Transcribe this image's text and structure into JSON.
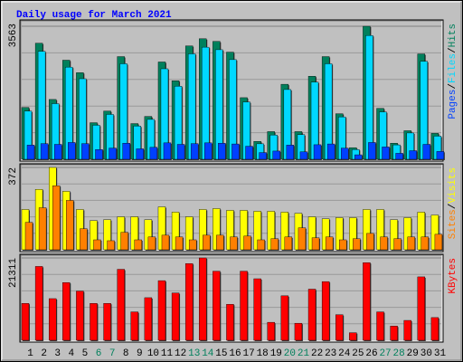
{
  "chart_data": [
    {
      "type": "bar",
      "title": "Daily usage for March 2021",
      "ylim": [
        0,
        3563
      ],
      "yticks": [
        3563
      ],
      "legend_separator": "/",
      "series": [
        {
          "name": "Hits",
          "color": "#00805c",
          "values": [
            1387,
            3108,
            1602,
            2654,
            2319,
            980,
            1291,
            2750,
            956,
            1148,
            2606,
            2104,
            3037,
            3228,
            3156,
            2870,
            1650,
            478,
            741,
            2009,
            741,
            2224,
            2750,
            1220,
            311,
            3563,
            1363,
            430,
            765,
            2822,
            694
          ]
        },
        {
          "name": "Files",
          "color": "#00d8ff",
          "values": [
            1290,
            2890,
            1490,
            2468,
            2157,
            911,
            1201,
            2558,
            889,
            1068,
            2424,
            1957,
            2824,
            3002,
            2935,
            2669,
            1535,
            415,
            650,
            1868,
            660,
            2068,
            2558,
            1135,
            260,
            3314,
            1268,
            385,
            705,
            2624,
            620
          ]
        },
        {
          "name": "Pages",
          "color": "#0040ff",
          "values": [
            380,
            420,
            400,
            450,
            420,
            260,
            300,
            430,
            280,
            320,
            440,
            400,
            420,
            440,
            430,
            410,
            350,
            180,
            220,
            380,
            200,
            390,
            410,
            300,
            120,
            450,
            330,
            160,
            230,
            400,
            210
          ]
        }
      ]
    },
    {
      "type": "bar",
      "ylim": [
        0,
        372
      ],
      "yticks": [
        372
      ],
      "legend_separator": "/",
      "series": [
        {
          "name": "Visits",
          "color": "#ffff00",
          "values": [
            182,
            273,
            372,
            264,
            182,
            132,
            136,
            149,
            149,
            136,
            194,
            170,
            149,
            182,
            186,
            178,
            178,
            174,
            174,
            170,
            165,
            149,
            140,
            145,
            145,
            182,
            182,
            136,
            145,
            170,
            157
          ]
        },
        {
          "name": "Sites",
          "color": "#ff8000",
          "values": [
            124,
            190,
            289,
            223,
            95,
            45,
            41,
            79,
            45,
            58,
            66,
            58,
            45,
            66,
            66,
            58,
            62,
            45,
            50,
            58,
            99,
            54,
            58,
            45,
            50,
            74,
            58,
            50,
            58,
            58,
            70
          ]
        }
      ]
    },
    {
      "type": "bar",
      "ylim": [
        0,
        21311
      ],
      "yticks": [
        21311
      ],
      "categories": [
        "1",
        "2",
        "3",
        "4",
        "5",
        "6",
        "7",
        "8",
        "9",
        "10",
        "11",
        "12",
        "13",
        "14",
        "15",
        "16",
        "17",
        "18",
        "19",
        "20",
        "21",
        "22",
        "23",
        "24",
        "25",
        "26",
        "27",
        "28",
        "29",
        "30",
        "31"
      ],
      "category_colors": [
        "#000000",
        "#000000",
        "#000000",
        "#000000",
        "#000000",
        "#00805c",
        "#00805c",
        "#000000",
        "#000000",
        "#000000",
        "#000000",
        "#000000",
        "#00805c",
        "#00805c",
        "#000000",
        "#000000",
        "#000000",
        "#000000",
        "#000000",
        "#00805c",
        "#00805c",
        "#000000",
        "#000000",
        "#000000",
        "#000000",
        "#000000",
        "#00805c",
        "#00805c",
        "#000000",
        "#000000",
        "#000000"
      ],
      "series": [
        {
          "name": "KBytes",
          "color": "#ff0000",
          "values": [
            9553,
            19107,
            10778,
            14943,
            12738,
            9553,
            9553,
            18372,
            7349,
            11023,
            15433,
            12248,
            19842,
            21311,
            17882,
            9308,
            17882,
            15923,
            4654,
            11513,
            4409,
            13228,
            15188,
            6614,
            1960,
            20087,
            7349,
            3674,
            5144,
            16413,
            5879
          ]
        }
      ]
    }
  ]
}
